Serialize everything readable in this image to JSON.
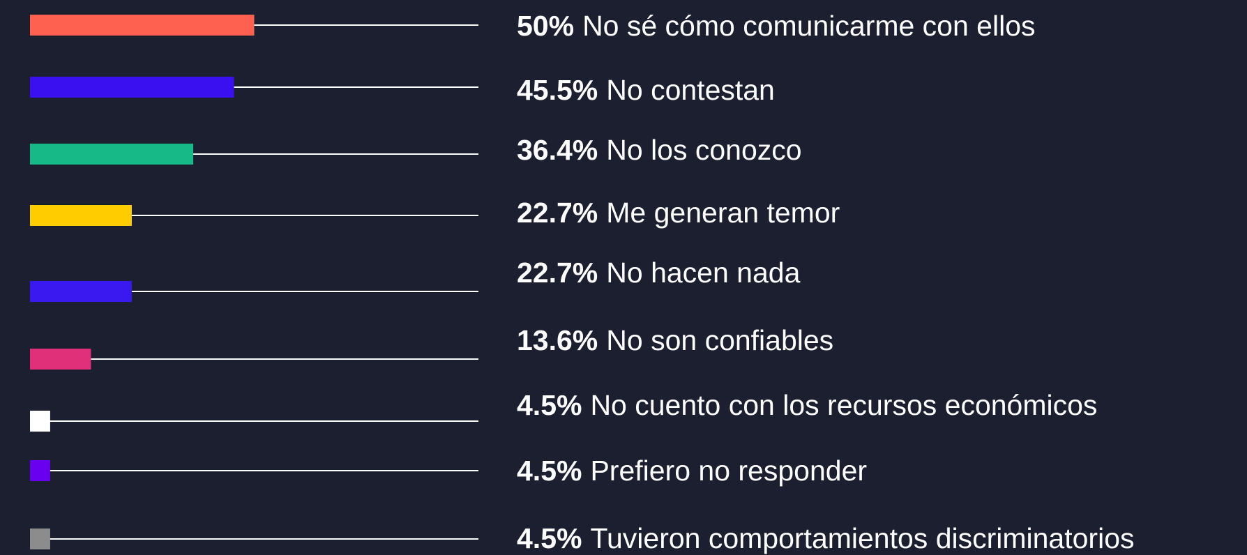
{
  "chart_data": {
    "type": "bar",
    "orientation": "horizontal",
    "categories": [
      "No sé cómo comunicarme con ellos",
      "No contestan",
      "No los conozco",
      "Me generan temor",
      "No hacen nada",
      "No son confiables",
      "No cuento con los recursos económicos",
      "Prefiero no responder",
      "Tuvieron comportamientos discriminatorios"
    ],
    "values": [
      50,
      45.5,
      36.4,
      22.7,
      22.7,
      13.6,
      4.5,
      4.5,
      4.5
    ],
    "value_labels": [
      "50%",
      "45.5%",
      "36.4%",
      "22.7%",
      "22.7%",
      "13.6%",
      "4.5%",
      "4.5%",
      "4.5%"
    ],
    "colors": [
      "#ff6150",
      "#3a0ff0",
      "#17b986",
      "#ffcc00",
      "#3a18f0",
      "#e0307a",
      "#ffffff",
      "#6a00f0",
      "#8c8c8c"
    ],
    "xlim": [
      0,
      100
    ]
  }
}
